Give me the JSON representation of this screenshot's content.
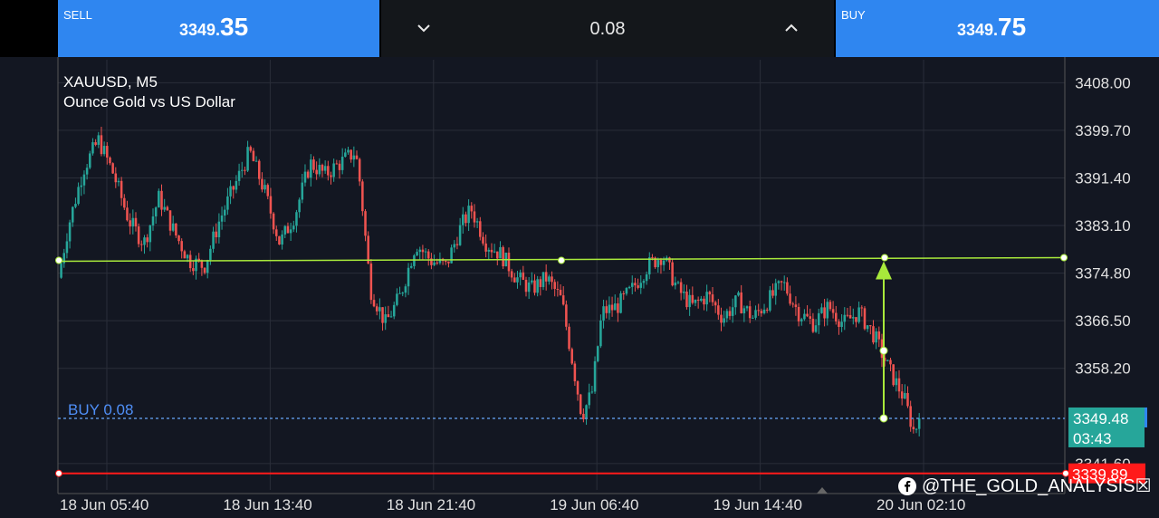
{
  "trade_panel": {
    "sell": {
      "label": "SELL",
      "price_small": "3349.",
      "price_big": "35"
    },
    "buy": {
      "label": "BUY",
      "price_small": "3349.",
      "price_big": "75"
    },
    "volume": "0.08"
  },
  "chart_header": {
    "symbol": "XAUUSD, M5",
    "description": "Ounce Gold vs US Dollar"
  },
  "watermark": {
    "text": "@THE_GOLD_ANALYSIS☒",
    "icon": "facebook-icon"
  },
  "chart_data": {
    "type": "candlestick",
    "y_axis": {
      "ticks": [
        "3408.00",
        "3399.70",
        "3391.40",
        "3383.10",
        "3374.80",
        "3366.50",
        "3358.20",
        "3341.60"
      ],
      "range": [
        3337.0,
        3412.0
      ]
    },
    "x_axis": {
      "ticks": [
        "18 Jun 05:40",
        "18 Jun 13:40",
        "18 Jun 21:40",
        "19 Jun 06:40",
        "19 Jun 14:40",
        "20 Jun 02:10"
      ]
    },
    "grid": true,
    "close_path": [
      [
        0,
        3374
      ],
      [
        0.01,
        3383
      ],
      [
        0.025,
        3393
      ],
      [
        0.04,
        3398
      ],
      [
        0.055,
        3392
      ],
      [
        0.07,
        3384
      ],
      [
        0.085,
        3380
      ],
      [
        0.1,
        3388
      ],
      [
        0.115,
        3382
      ],
      [
        0.13,
        3377
      ],
      [
        0.145,
        3376
      ],
      [
        0.16,
        3384
      ],
      [
        0.175,
        3390
      ],
      [
        0.19,
        3396
      ],
      [
        0.205,
        3389
      ],
      [
        0.22,
        3380
      ],
      [
        0.235,
        3385
      ],
      [
        0.25,
        3394
      ],
      [
        0.265,
        3392
      ],
      [
        0.28,
        3394
      ],
      [
        0.295,
        3396
      ],
      [
        0.3,
        3390
      ],
      [
        0.31,
        3372
      ],
      [
        0.325,
        3366
      ],
      [
        0.34,
        3371
      ],
      [
        0.355,
        3380
      ],
      [
        0.37,
        3377
      ],
      [
        0.385,
        3376
      ],
      [
        0.4,
        3383
      ],
      [
        0.41,
        3386
      ],
      [
        0.425,
        3380
      ],
      [
        0.44,
        3378
      ],
      [
        0.455,
        3374
      ],
      [
        0.47,
        3372
      ],
      [
        0.485,
        3374
      ],
      [
        0.5,
        3370
      ],
      [
        0.51,
        3360
      ],
      [
        0.52,
        3350
      ],
      [
        0.53,
        3354
      ],
      [
        0.54,
        3368
      ],
      [
        0.555,
        3369
      ],
      [
        0.57,
        3372
      ],
      [
        0.585,
        3376
      ],
      [
        0.6,
        3378
      ],
      [
        0.615,
        3372
      ],
      [
        0.63,
        3369
      ],
      [
        0.645,
        3371
      ],
      [
        0.66,
        3367
      ],
      [
        0.675,
        3370
      ],
      [
        0.69,
        3367
      ],
      [
        0.705,
        3370
      ],
      [
        0.72,
        3373
      ],
      [
        0.735,
        3368
      ],
      [
        0.75,
        3366
      ],
      [
        0.765,
        3369
      ],
      [
        0.78,
        3366
      ],
      [
        0.795,
        3368
      ],
      [
        0.81,
        3364
      ],
      [
        0.825,
        3358
      ],
      [
        0.84,
        3353
      ],
      [
        0.85,
        3347
      ],
      [
        0.855,
        3349.48
      ]
    ],
    "lines": [
      {
        "label": "BUY 0.08",
        "price": 3349.48,
        "color": "#5b8fd8",
        "style": "dashed"
      },
      {
        "label": "",
        "price": 3377.5,
        "color": "#a8e93b",
        "style": "solid"
      },
      {
        "label": "",
        "price": 3339.89,
        "color": "#ff1a1a",
        "style": "solid"
      }
    ],
    "price_tags": [
      {
        "value": "3349.48",
        "sub": "03:43",
        "color": "#26a69a"
      },
      {
        "value": "3339.89",
        "color": "#ff1a1a"
      }
    ],
    "up_color": "#26a69a",
    "down_color": "#ef5350"
  }
}
